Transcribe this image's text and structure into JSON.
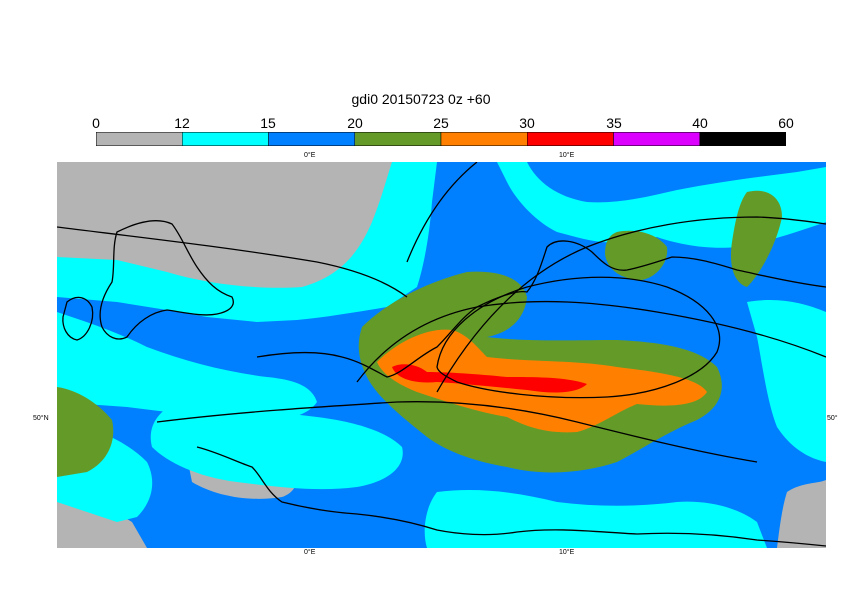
{
  "title": "gdi0 20150723 0z +60",
  "legend": {
    "labels": [
      "0",
      "12",
      "15",
      "20",
      "25",
      "30",
      "35",
      "40",
      "60"
    ],
    "colors": [
      "#b4b4b4",
      "#00ffff",
      "#0080ff",
      "#649b28",
      "#ff8000",
      "#ff0000",
      "#dc00ff",
      "#000000"
    ]
  },
  "axes": {
    "top_lon": [
      "0°E",
      "10°E"
    ],
    "bottom_lon": [
      "0°E",
      "10°E"
    ],
    "left_lat": "50°N",
    "right_lat": "50°"
  },
  "map_colors": {
    "gray": "#b4b4b4",
    "cyan": "#00ffff",
    "blue": "#0080ff",
    "green": "#649b28",
    "orange": "#ff8000",
    "red": "#ff0000",
    "coast": "#000000"
  }
}
